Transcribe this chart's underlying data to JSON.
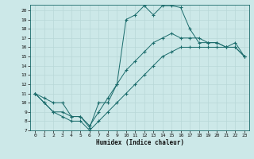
{
  "xlabel": "Humidex (Indice chaleur)",
  "bg_color": "#cce8e8",
  "line_color": "#1a6b6b",
  "grid_color": "#aacccc",
  "grid_color2": "#b8d8d8",
  "xlim": [
    -0.5,
    23.5
  ],
  "ylim": [
    7,
    20.6
  ],
  "xticks": [
    0,
    1,
    2,
    3,
    4,
    5,
    6,
    7,
    8,
    9,
    10,
    11,
    12,
    13,
    14,
    15,
    16,
    17,
    18,
    19,
    20,
    21,
    22,
    23
  ],
  "yticks": [
    7,
    8,
    9,
    10,
    11,
    12,
    13,
    14,
    15,
    16,
    17,
    18,
    19,
    20
  ],
  "line1_x": [
    0,
    1,
    2,
    3,
    4,
    5,
    6,
    7,
    8,
    9,
    10,
    11,
    12,
    13,
    14,
    15,
    16,
    17,
    18,
    19,
    20,
    21,
    22,
    23
  ],
  "line1_y": [
    11,
    10.5,
    10,
    10,
    8.5,
    8.5,
    7.3,
    10,
    10,
    12,
    19,
    19.5,
    20.5,
    19.5,
    20.5,
    20.5,
    20.3,
    18,
    16.5,
    16.5,
    16.5,
    16,
    16.5,
    15
  ],
  "line2_x": [
    0,
    1,
    2,
    3,
    4,
    5,
    6,
    7,
    8,
    9,
    10,
    11,
    12,
    13,
    14,
    15,
    16,
    17,
    18,
    19,
    20,
    21,
    22,
    23
  ],
  "line2_y": [
    11,
    10,
    9,
    8.5,
    8,
    8,
    7,
    8,
    9,
    10,
    11,
    12,
    13,
    14,
    15,
    15.5,
    16,
    16,
    16,
    16,
    16,
    16,
    16,
    15
  ],
  "line3_x": [
    0,
    1,
    2,
    3,
    4,
    5,
    6,
    7,
    8,
    9,
    10,
    11,
    12,
    13,
    14,
    15,
    16,
    17,
    18,
    19,
    20,
    21,
    22,
    23
  ],
  "line3_y": [
    11,
    10,
    9,
    9,
    8.5,
    8.5,
    7.5,
    9,
    10.5,
    12,
    13.5,
    14.5,
    15.5,
    16.5,
    17,
    17.5,
    17,
    17,
    17,
    16.5,
    16.5,
    16,
    16,
    15
  ]
}
